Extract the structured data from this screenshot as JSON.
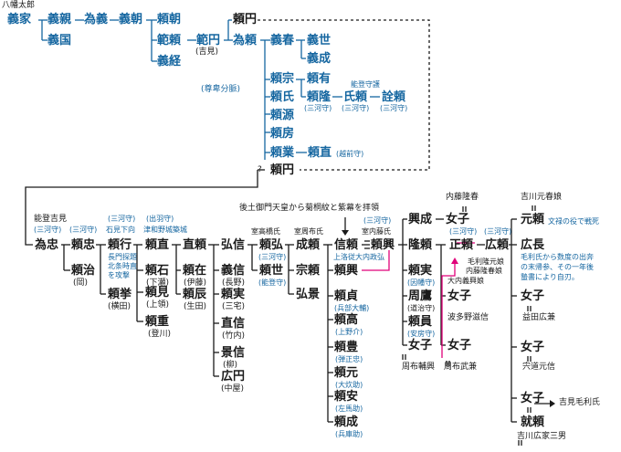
{
  "colors": {
    "lineage": "#1566a0",
    "text": "#1a1a1a",
    "highlight": "#e0007a"
  },
  "ancestor": {
    "label": "八幡太郎",
    "name": "義家"
  },
  "line1": {
    "yoshichika": "義親",
    "tameyoshi": "為義",
    "yoshitomo": "義朝",
    "yoritomo": "頼朝",
    "yoshitsune": "義経"
  },
  "yoshikuni": "義国",
  "rikiyori": {
    "name": "範頼",
    "son": "範円",
    "son_note": "(吉見)",
    "grandson": "為頼"
  },
  "unknown": "?",
  "yorien": "頼円",
  "tamayori_sons": {
    "yoshiharu": "義春",
    "yoshiyo": "義世",
    "yoshinari": "義成"
  },
  "sonpi": "(尊卑分脈)",
  "sons2": {
    "yorimune": "頼宗",
    "yoriuji": "頼氏",
    "yorimoto": "頼源",
    "yorifusa": "頼房",
    "yorigyo": "頼業",
    "yoritada": "頼直",
    "yoritada_note": "(越前守)"
  },
  "yoriari": "頼有",
  "yoritaka": {
    "name": "頼隆",
    "note": "(三河守)"
  },
  "ujiyori": {
    "name": "氏頼",
    "note": "(三河守)"
  },
  "norinori": {
    "name": "詮頼",
    "note": "(三河守)"
  },
  "noto_label": "能登守護",
  "yorien2": "頼円",
  "noto_yoshimi": "能登吉見",
  "tamatada": {
    "name": "為忠",
    "note": "(三河守)"
  },
  "yoritada2": {
    "name": "頼忠",
    "note": "(三河守)"
  },
  "yoriharu": {
    "name": "頼治",
    "note": "(岡)"
  },
  "yoriyuki": {
    "name": "頼行",
    "note": "(三河守)",
    "note2": "石見下向",
    "note3": "長門探題",
    "note4": "北条時直",
    "note5": "を攻撃"
  },
  "yorikyo": {
    "name": "頼挙",
    "note": "(横田)"
  },
  "yorinao": {
    "name": "頼直",
    "note": "(出羽守)",
    "note2": "津和野城築城"
  },
  "yoriishi": {
    "name": "頼石",
    "note": "(下瀬)"
  },
  "yorimi": {
    "name": "頼見",
    "note": "(上領)"
  },
  "yorishige": {
    "name": "頼重",
    "note": "(登川)"
  },
  "naoyori": "直頼",
  "yoriari2": {
    "name": "頼在",
    "note": "(伊藤)"
  },
  "yoritatsu": {
    "name": "頼辰",
    "note": "(生田)"
  },
  "hironobu": "弘信",
  "yoshinobu": {
    "name": "義信",
    "note": "(長野)"
  },
  "yorizane": {
    "name": "頼実",
    "note": "(三宅)"
  },
  "naonobu": {
    "name": "直信",
    "note": "(竹内)"
  },
  "kagenobu": {
    "name": "景信",
    "note": "(柳)"
  },
  "hiromaru": {
    "name": "広円",
    "note": "(中屋)"
  },
  "muromachi": "室高橋氏",
  "yorihiro": {
    "name": "頼弘",
    "note": "(三河守)"
  },
  "yoriyo": {
    "name": "頼世",
    "note": "(能登守)"
  },
  "muro_suo": "室周布氏",
  "shigeyori": "成頼",
  "muneyori": "宗頼",
  "hirokage": "弘景",
  "gotsuchi": "後土御門天皇から菊桐紋と紫幕を拝領",
  "nobuyori": {
    "name": "信頼",
    "note": "上洛従大内政弘"
  },
  "muro_naito": "室内藤氏",
  "yorioki": {
    "name": "頼興",
    "note": "(三河守)"
  },
  "yoriko": "頼興",
  "yorisada": {
    "name": "頼貞",
    "note": "(兵部大輔)"
  },
  "yoritaka2": {
    "name": "頼高",
    "note": "(上野介)"
  },
  "yoritoyo": {
    "name": "頼豊",
    "note": "(弾正忠)"
  },
  "yorimoto2": {
    "name": "頼元",
    "note": "(大炊助)"
  },
  "yoriyasu": {
    "name": "頼安",
    "note": "(左馬助)"
  },
  "yorinari": {
    "name": "頼成",
    "note": "(兵庫助)"
  },
  "okiyori": "興成",
  "takayori": "隆頼",
  "yorizane2": {
    "name": "頼実",
    "note": "(因幡守)"
  },
  "chikayori": {
    "name": "周鷹",
    "note": "(道治守)"
  },
  "yorikazu": {
    "name": "頼員",
    "note": "(安房守)"
  },
  "onna1": "女子",
  "suo1": "周布輔興",
  "naito": "内藤隆春",
  "onna2": "女子",
  "masayori": {
    "name": "正頼",
    "note": "(三河守)"
  },
  "hironori": {
    "name": "広頼",
    "note": "(三河守)"
  },
  "onna3": {
    "name": "女子",
    "note1": "毛利隆元娘",
    "note2": "内藤隆春娘"
  },
  "ouchi": "大内義興娘",
  "onna4": {
    "name": "女子",
    "note": "波多野滋信"
  },
  "onna5": {
    "name": "女子",
    "note": "周布武兼"
  },
  "kikkawa_musume": "吉川元春娘",
  "motoyori": {
    "name": "元頼",
    "note": "文禄の役で戦死"
  },
  "hironaga": {
    "name": "広長",
    "note": "毛利氏から数度の出奔",
    "note2": "の末帰参、その一年後",
    "note3": "蟄書により自刃。"
  },
  "onna6": {
    "name": "女子",
    "note": "益田広兼"
  },
  "onna7": {
    "name": "女子",
    "note": "宍道元信"
  },
  "onna8": {
    "name": "女子",
    "note": "吉見毛利氏"
  },
  "nariyori": {
    "name": "就頼",
    "note": "吉川広家三男"
  }
}
